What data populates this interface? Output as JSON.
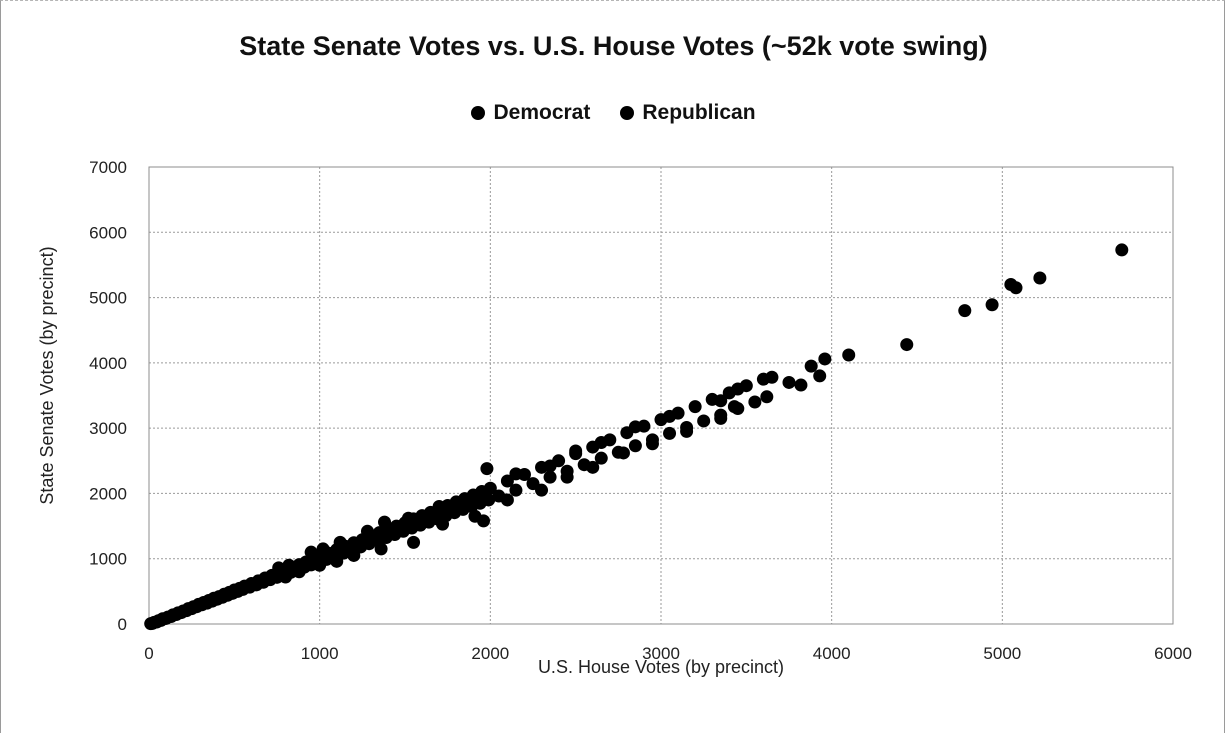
{
  "chart_data": {
    "type": "scatter",
    "title": "State Senate Votes vs. U.S. House Votes (~52k vote swing)",
    "xlabel": "U.S. House Votes (by precinct)",
    "ylabel": "State Senate Votes (by precinct)",
    "xlim": [
      0,
      6000
    ],
    "ylim": [
      0,
      7000
    ],
    "xticks": [
      "0",
      "1000",
      "2000",
      "3000",
      "4000",
      "5000",
      "6000"
    ],
    "yticks": [
      "0",
      "1000",
      "2000",
      "3000",
      "4000",
      "5000",
      "6000",
      "7000"
    ],
    "grid": true,
    "legend_position": "top",
    "series": [
      {
        "name": "Democrat",
        "color": "#000000",
        "points": [
          [
            10,
            5
          ],
          [
            30,
            25
          ],
          [
            55,
            50
          ],
          [
            80,
            80
          ],
          [
            110,
            105
          ],
          [
            140,
            140
          ],
          [
            170,
            170
          ],
          [
            200,
            200
          ],
          [
            230,
            235
          ],
          [
            260,
            265
          ],
          [
            290,
            300
          ],
          [
            320,
            330
          ],
          [
            350,
            360
          ],
          [
            380,
            395
          ],
          [
            410,
            420
          ],
          [
            440,
            455
          ],
          [
            470,
            485
          ],
          [
            500,
            520
          ],
          [
            530,
            545
          ],
          [
            560,
            580
          ],
          [
            600,
            620
          ],
          [
            640,
            660
          ],
          [
            680,
            705
          ],
          [
            720,
            745
          ],
          [
            760,
            785
          ],
          [
            800,
            830
          ],
          [
            840,
            870
          ],
          [
            880,
            910
          ],
          [
            920,
            950
          ],
          [
            960,
            995
          ],
          [
            1000,
            1030
          ],
          [
            1050,
            1085
          ],
          [
            1100,
            1140
          ],
          [
            1150,
            1190
          ],
          [
            1200,
            1245
          ],
          [
            1250,
            1290
          ],
          [
            1300,
            1345
          ],
          [
            1350,
            1400
          ],
          [
            1400,
            1450
          ],
          [
            1450,
            1500
          ],
          [
            1500,
            1550
          ],
          [
            1550,
            1610
          ],
          [
            1600,
            1660
          ],
          [
            1650,
            1710
          ],
          [
            1700,
            1760
          ],
          [
            1750,
            1815
          ],
          [
            1800,
            1870
          ],
          [
            1850,
            1920
          ],
          [
            1900,
            1975
          ],
          [
            1950,
            2030
          ],
          [
            2000,
            2080
          ],
          [
            2100,
            2190
          ],
          [
            2200,
            2290
          ],
          [
            2300,
            2400
          ],
          [
            2400,
            2500
          ],
          [
            2500,
            2610
          ],
          [
            2600,
            2710
          ],
          [
            2700,
            2820
          ],
          [
            2800,
            2930
          ],
          [
            2900,
            3030
          ],
          [
            3000,
            3130
          ],
          [
            3100,
            3230
          ],
          [
            3200,
            3330
          ],
          [
            3300,
            3440
          ],
          [
            3400,
            3540
          ],
          [
            3500,
            3650
          ],
          [
            3600,
            3750
          ],
          [
            3650,
            3780
          ],
          [
            3750,
            3700
          ],
          [
            3880,
            3950
          ],
          [
            3960,
            4060
          ],
          [
            4100,
            4120
          ],
          [
            4440,
            4280
          ],
          [
            4780,
            4800
          ],
          [
            4940,
            4890
          ],
          [
            5050,
            5200
          ],
          [
            5080,
            5150
          ],
          [
            5220,
            5300
          ],
          [
            5700,
            5730
          ],
          [
            760,
            860
          ],
          [
            820,
            900
          ],
          [
            950,
            1100
          ],
          [
            1020,
            1150
          ],
          [
            1120,
            1250
          ],
          [
            1280,
            1420
          ],
          [
            1380,
            1560
          ],
          [
            1520,
            1620
          ],
          [
            1700,
            1800
          ],
          [
            1980,
            2380
          ],
          [
            2150,
            2300
          ],
          [
            2350,
            2420
          ],
          [
            2500,
            2650
          ],
          [
            2650,
            2780
          ],
          [
            2850,
            3020
          ],
          [
            3050,
            3180
          ],
          [
            3350,
            3420
          ],
          [
            3450,
            3600
          ]
        ]
      },
      {
        "name": "Republican",
        "color": "#000000",
        "points": [
          [
            20,
            10
          ],
          [
            45,
            30
          ],
          [
            70,
            55
          ],
          [
            100,
            85
          ],
          [
            130,
            115
          ],
          [
            160,
            145
          ],
          [
            190,
            175
          ],
          [
            220,
            205
          ],
          [
            250,
            235
          ],
          [
            280,
            265
          ],
          [
            310,
            295
          ],
          [
            340,
            320
          ],
          [
            370,
            350
          ],
          [
            400,
            380
          ],
          [
            430,
            410
          ],
          [
            460,
            440
          ],
          [
            490,
            470
          ],
          [
            520,
            500
          ],
          [
            550,
            530
          ],
          [
            590,
            565
          ],
          [
            630,
            600
          ],
          [
            670,
            640
          ],
          [
            710,
            680
          ],
          [
            750,
            715
          ],
          [
            790,
            755
          ],
          [
            830,
            790
          ],
          [
            870,
            830
          ],
          [
            910,
            870
          ],
          [
            950,
            905
          ],
          [
            990,
            945
          ],
          [
            1040,
            990
          ],
          [
            1090,
            1040
          ],
          [
            1140,
            1085
          ],
          [
            1190,
            1135
          ],
          [
            1240,
            1180
          ],
          [
            1290,
            1230
          ],
          [
            1340,
            1280
          ],
          [
            1390,
            1325
          ],
          [
            1440,
            1370
          ],
          [
            1490,
            1420
          ],
          [
            1540,
            1470
          ],
          [
            1590,
            1515
          ],
          [
            1640,
            1560
          ],
          [
            1690,
            1610
          ],
          [
            1740,
            1660
          ],
          [
            1790,
            1705
          ],
          [
            1840,
            1755
          ],
          [
            1890,
            1800
          ],
          [
            1940,
            1850
          ],
          [
            1990,
            1900
          ],
          [
            2050,
            1960
          ],
          [
            2150,
            2050
          ],
          [
            2250,
            2150
          ],
          [
            2350,
            2250
          ],
          [
            2450,
            2340
          ],
          [
            2550,
            2440
          ],
          [
            2650,
            2540
          ],
          [
            2750,
            2630
          ],
          [
            2850,
            2730
          ],
          [
            2950,
            2820
          ],
          [
            3050,
            2920
          ],
          [
            3150,
            3010
          ],
          [
            3250,
            3110
          ],
          [
            3350,
            3200
          ],
          [
            3450,
            3300
          ],
          [
            3550,
            3400
          ],
          [
            3620,
            3480
          ],
          [
            3820,
            3660
          ],
          [
            3930,
            3800
          ],
          [
            800,
            720
          ],
          [
            880,
            800
          ],
          [
            1000,
            900
          ],
          [
            1100,
            960
          ],
          [
            1200,
            1050
          ],
          [
            1360,
            1150
          ],
          [
            1550,
            1250
          ],
          [
            1720,
            1530
          ],
          [
            1960,
            1580
          ],
          [
            1910,
            1650
          ],
          [
            2100,
            1900
          ],
          [
            2300,
            2050
          ],
          [
            2450,
            2250
          ],
          [
            2600,
            2400
          ],
          [
            2780,
            2620
          ],
          [
            2950,
            2760
          ],
          [
            3150,
            2950
          ],
          [
            3350,
            3150
          ],
          [
            3430,
            3330
          ]
        ]
      }
    ]
  }
}
